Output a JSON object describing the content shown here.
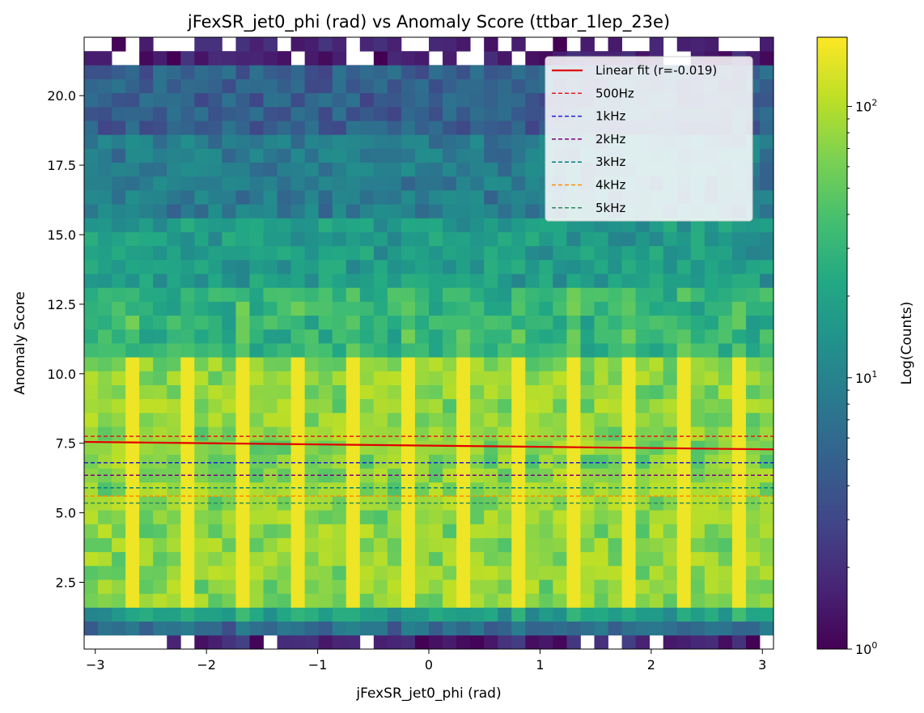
{
  "chart_data": {
    "type": "heatmap",
    "title": "jFexSR_jet0_phi (rad) vs Anomaly Score (ttbar_1lep_23e)",
    "xlabel": "jFexSR_jet0_phi (rad)",
    "ylabel": "Anomaly Score",
    "colorbar_label": "Log(Counts)",
    "colorbar_scale": "log",
    "colorbar_range": [
      1,
      180
    ],
    "colorbar_ticks": [
      {
        "value": 1,
        "base": "10",
        "exp": "0"
      },
      {
        "value": 10,
        "base": "10",
        "exp": "1"
      },
      {
        "value": 100,
        "base": "10",
        "exp": "2"
      }
    ],
    "colormap": "viridis",
    "xlim": [
      -3.1,
      3.1
    ],
    "ylim": [
      0.1,
      22.1
    ],
    "xticks": [
      -3,
      -2,
      -1,
      0,
      1,
      2,
      3
    ],
    "xtick_labels": [
      "−3",
      "−2",
      "−1",
      "0",
      "1",
      "2",
      "3"
    ],
    "yticks": [
      2.5,
      5.0,
      7.5,
      10.0,
      12.5,
      15.0,
      17.5,
      20.0
    ],
    "ytick_labels": [
      "2.5",
      "5.0",
      "7.5",
      "10.0",
      "12.5",
      "15.0",
      "17.5",
      "20.0"
    ],
    "bins": {
      "nx": 50,
      "ny": 44
    },
    "bright_phi_columns": [
      -2.71,
      -2.21,
      -1.71,
      -1.21,
      -0.71,
      -0.21,
      0.29,
      0.79,
      1.29,
      1.79,
      2.29,
      2.79
    ],
    "row_profile": [
      {
        "y": [
          0.1,
          0.6
        ],
        "counts": 1.5
      },
      {
        "y": [
          0.6,
          1.1
        ],
        "counts": 6
      },
      {
        "y": [
          1.1,
          1.6
        ],
        "counts": 18
      },
      {
        "y": [
          1.6,
          10.5
        ],
        "counts": 75
      },
      {
        "y": [
          10.5,
          13.0
        ],
        "counts": 30
      },
      {
        "y": [
          13.0,
          15.5
        ],
        "counts": 18
      },
      {
        "y": [
          15.5,
          18.5
        ],
        "counts": 9
      },
      {
        "y": [
          18.5,
          21.0
        ],
        "counts": 5
      },
      {
        "y": [
          21.0,
          22.1
        ],
        "counts": 1.5
      }
    ],
    "fit": {
      "label": "Linear fit (r=-0.019)",
      "color": "#e00000",
      "x": [
        -3.1,
        3.1
      ],
      "y": [
        7.55,
        7.28
      ]
    },
    "hlines": [
      {
        "label": "500Hz",
        "y": 7.75,
        "color": "#e41a1c"
      },
      {
        "label": "1kHz",
        "y": 6.8,
        "color": "#1f1fd4"
      },
      {
        "label": "2kHz",
        "y": 6.35,
        "color": "#800080"
      },
      {
        "label": "3kHz",
        "y": 5.9,
        "color": "#008080"
      },
      {
        "label": "4kHz",
        "y": 5.6,
        "color": "#ff8c00"
      },
      {
        "label": "5kHz",
        "y": 5.35,
        "color": "#2e8b57"
      }
    ],
    "legend_position": "upper right"
  }
}
